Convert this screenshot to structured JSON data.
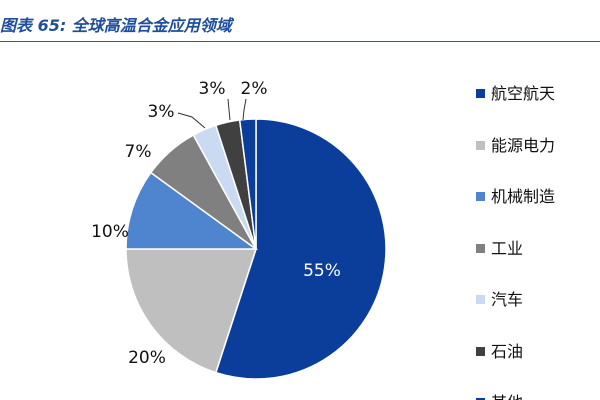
{
  "title": "图表 65: 全球高温合金应用领域",
  "chart_data": {
    "type": "pie",
    "title": "图表 65: 全球高温合金应用领域",
    "legend_position": "right",
    "slices": [
      {
        "label": "航空航天",
        "value": 55,
        "value_label": "55%",
        "color": "#0b3d9a"
      },
      {
        "label": "能源电力",
        "value": 20,
        "value_label": "20%",
        "color": "#bfbfbf"
      },
      {
        "label": "机械制造",
        "value": 10,
        "value_label": "10%",
        "color": "#4f85cf"
      },
      {
        "label": "工业",
        "value": 7,
        "value_label": "7%",
        "color": "#808080"
      },
      {
        "label": "汽车",
        "value": 3,
        "value_label": "3%",
        "color": "#c9daf2"
      },
      {
        "label": "石油",
        "value": 3,
        "value_label": "3%",
        "color": "#404040"
      },
      {
        "label": "其他",
        "value": 2,
        "value_label": "2%",
        "color": "#0b3d9a"
      }
    ]
  }
}
